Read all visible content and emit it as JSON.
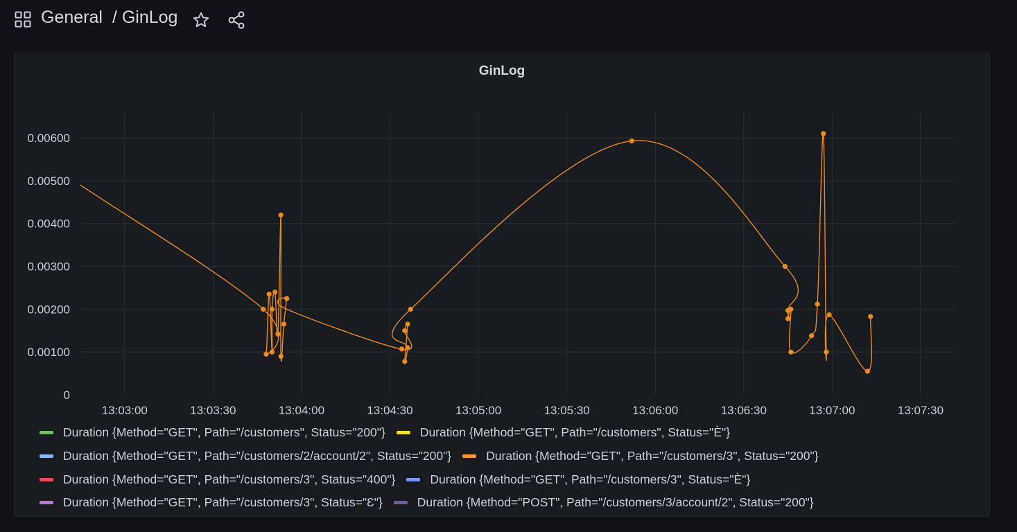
{
  "header": {
    "breadcrumb_folder": "General",
    "breadcrumb_title": "/ GinLog"
  },
  "icons": {
    "apps": "apps-grid-icon",
    "star": "star-icon",
    "share": "share-icon"
  },
  "colors": {
    "background": "#111217",
    "panel": "#181b1f",
    "series_line": "#ee8a1a"
  },
  "panel": {
    "title": "GinLog"
  },
  "legend": [
    [
      {
        "label": "Duration {Method=\"GET\", Path=\"/customers\", Status=\"200\"}",
        "color": "#73bf69"
      },
      {
        "label": "Duration {Method=\"GET\", Path=\"/customers\", Status=\"È\"}",
        "color": "#fade2a"
      }
    ],
    [
      {
        "label": "Duration {Method=\"GET\", Path=\"/customers/2/account/2\", Status=\"200\"}",
        "color": "#8ab8ff"
      },
      {
        "label": "Duration {Method=\"GET\", Path=\"/customers/3\", Status=\"200\"}",
        "color": "#ff9830"
      }
    ],
    [
      {
        "label": "Duration {Method=\"GET\", Path=\"/customers/3\", Status=\"400\"}",
        "color": "#f2495c"
      },
      {
        "label": "Duration {Method=\"GET\", Path=\"/customers/3\", Status=\"È\"}",
        "color": "#7e96f5"
      }
    ],
    [
      {
        "label": "Duration {Method=\"GET\", Path=\"/customers/3\", Status=\"Ɛ\"}",
        "color": "#b877d9"
      },
      {
        "label": "Duration {Method=\"POST\", Path=\"/customers/3/account/2\", Status=\"200\"}",
        "color": "#705da0"
      }
    ]
  ],
  "chart_data": {
    "type": "line",
    "title": "GinLog",
    "xlabel": "",
    "ylabel": "",
    "x_ticks": [
      "13:03:00",
      "13:03:30",
      "13:04:00",
      "13:04:30",
      "13:05:00",
      "13:05:30",
      "13:06:00",
      "13:06:30",
      "13:07:00",
      "13:07:30"
    ],
    "y_ticks": [
      "0",
      "0.00100",
      "0.00200",
      "0.00300",
      "0.00400",
      "0.00500",
      "0.00600"
    ],
    "xlim": [
      "13:02:45",
      "13:07:42"
    ],
    "ylim": [
      0,
      0.0066
    ],
    "grid": true,
    "legend_position": "bottom",
    "series": [
      {
        "name": "Duration {Method=\"GET\", Path=\"/customers/3\", Status=\"200\"}",
        "color": "#ee8a1a",
        "points": [
          {
            "x": "13:02:45",
            "y": 0.0049,
            "marker": false
          },
          {
            "x": "13:03:47",
            "y": 0.002
          },
          {
            "x": "13:03:48",
            "y": 0.00095
          },
          {
            "x": "13:03:49",
            "y": 0.00235
          },
          {
            "x": "13:03:50",
            "y": 0.001
          },
          {
            "x": "13:03:50",
            "y": 0.002
          },
          {
            "x": "13:03:51",
            "y": 0.0024
          },
          {
            "x": "13:03:52",
            "y": 0.00142
          },
          {
            "x": "13:03:53",
            "y": 0.0042
          },
          {
            "x": "13:03:53",
            "y": 0.0009
          },
          {
            "x": "13:03:54",
            "y": 0.00165
          },
          {
            "x": "13:03:55",
            "y": 0.00225
          },
          {
            "x": "13:03:55",
            "y": 0.002,
            "marker": false
          },
          {
            "x": "13:04:34",
            "y": 0.00107
          },
          {
            "x": "13:04:35",
            "y": 0.0015
          },
          {
            "x": "13:04:36",
            "y": 0.00165
          },
          {
            "x": "13:04:35",
            "y": 0.00078
          },
          {
            "x": "13:04:36",
            "y": 0.0011
          },
          {
            "x": "13:04:37",
            "y": 0.002
          },
          {
            "x": "13:05:52",
            "y": 0.00593
          },
          {
            "x": "13:06:44",
            "y": 0.003
          },
          {
            "x": "13:06:45",
            "y": 0.00197
          },
          {
            "x": "13:06:45",
            "y": 0.00178
          },
          {
            "x": "13:06:46",
            "y": 0.002
          },
          {
            "x": "13:06:46",
            "y": 0.001
          },
          {
            "x": "13:06:53",
            "y": 0.00138
          },
          {
            "x": "13:06:55",
            "y": 0.00212
          },
          {
            "x": "13:06:57",
            "y": 0.0061
          },
          {
            "x": "13:06:58",
            "y": 0.001
          },
          {
            "x": "13:06:59",
            "y": 0.00187
          },
          {
            "x": "13:07:12",
            "y": 0.00055
          },
          {
            "x": "13:07:13",
            "y": 0.00183
          }
        ]
      }
    ]
  }
}
